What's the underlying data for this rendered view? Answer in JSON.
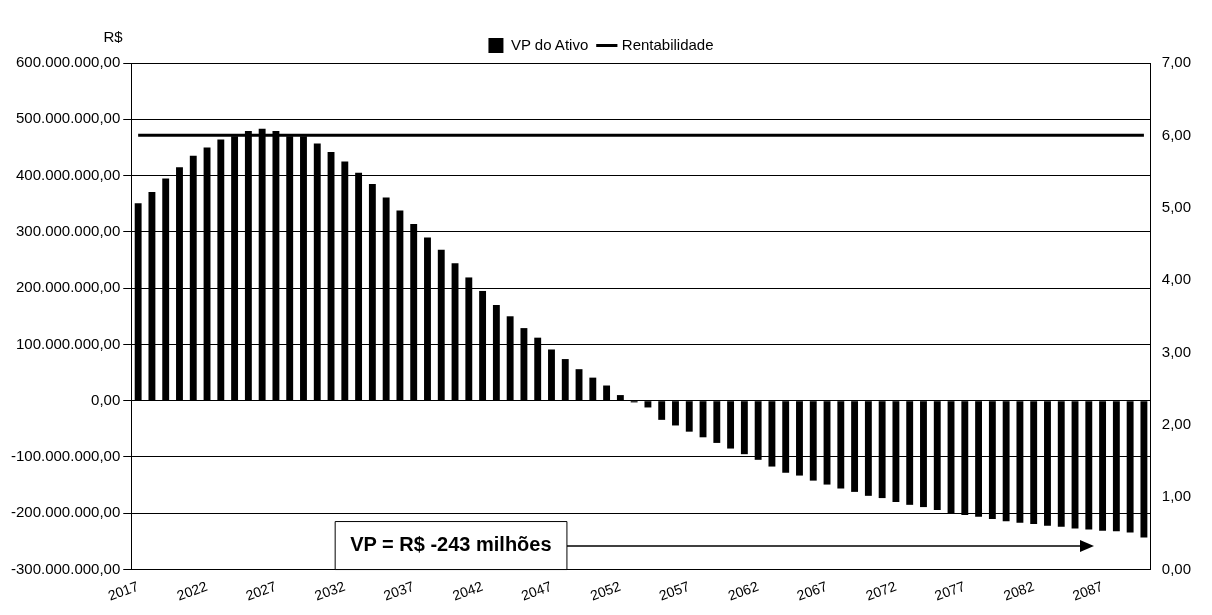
{
  "chart_data": {
    "type": "bar",
    "ylabel": "R$",
    "legend": "top",
    "categories": [
      "2017",
      null,
      null,
      null,
      null,
      "2022",
      null,
      null,
      null,
      null,
      "2027",
      null,
      null,
      null,
      null,
      "2032",
      null,
      null,
      null,
      null,
      "2037",
      null,
      null,
      null,
      null,
      "2042",
      null,
      null,
      null,
      null,
      "2047",
      null,
      null,
      null,
      null,
      "2052",
      null,
      null,
      null,
      null,
      "2057",
      null,
      null,
      null,
      null,
      "2062",
      null,
      null,
      null,
      null,
      "2067",
      null,
      null,
      null,
      null,
      "2072",
      null,
      null,
      null,
      null,
      "2077",
      null,
      null,
      null,
      null,
      "2082",
      null,
      null,
      null,
      null,
      "2087",
      null,
      null,
      null
    ],
    "series": [
      {
        "name": "VP do Ativo",
        "color": "#000000",
        "values": [
          351000000,
          371000000,
          395000000,
          415000000,
          435000000,
          450000000,
          464000000,
          470000000,
          479000000,
          483000000,
          479000000,
          470000000,
          470000000,
          457000000,
          442000000,
          425000000,
          405000000,
          385000000,
          361000000,
          338000000,
          314000000,
          290000000,
          268000000,
          244000000,
          219000000,
          195000000,
          170000000,
          150000000,
          129000000,
          112000000,
          91000000,
          74000000,
          56000000,
          41000000,
          27000000,
          10000000,
          -3000000,
          -12000000,
          -34000000,
          -44000000,
          -55000000,
          -65000000,
          -75000000,
          -85000000,
          -95000000,
          -105000000,
          -117000000,
          -128000000,
          -133000000,
          -142000000,
          -149000000,
          -156000000,
          -162000000,
          -169000000,
          -173000000,
          -180000000,
          -185000000,
          -189000000,
          -194000000,
          -200000000,
          -203000000,
          -206000000,
          -210000000,
          -214000000,
          -217000000,
          -219000000,
          -222000000,
          -224000000,
          -227000000,
          -229000000,
          -231000000,
          -232000000,
          -234000000,
          -243000000
        ]
      },
      {
        "name": "Rentabilidade",
        "type": "line",
        "axis": "y2",
        "color": "#000000",
        "values": [
          6,
          6,
          6,
          6,
          6,
          6,
          6,
          6,
          6,
          6,
          6,
          6,
          6,
          6,
          6,
          6,
          6,
          6,
          6,
          6,
          6,
          6,
          6,
          6,
          6,
          6,
          6,
          6,
          6,
          6,
          6,
          6,
          6,
          6,
          6,
          6,
          6,
          6,
          6,
          6,
          6,
          6,
          6,
          6,
          6,
          6,
          6,
          6,
          6,
          6,
          6,
          6,
          6,
          6,
          6,
          6,
          6,
          6,
          6,
          6,
          6,
          6,
          6,
          6,
          6,
          6,
          6,
          6,
          6,
          6,
          6,
          6,
          6,
          6
        ]
      }
    ],
    "ylim": [
      -300000000,
      600000000
    ],
    "yticks": [
      {
        "value": -300000000,
        "label": "-300.000.000,00"
      },
      {
        "value": -200000000,
        "label": "-200.000.000,00"
      },
      {
        "value": -100000000,
        "label": "-100.000.000,00"
      },
      {
        "value": 0,
        "label": "0,00"
      },
      {
        "value": 100000000,
        "label": "100.000.000,00"
      },
      {
        "value": 200000000,
        "label": "200.000.000,00"
      },
      {
        "value": 300000000,
        "label": "300.000.000,00"
      },
      {
        "value": 400000000,
        "label": "400.000.000,00"
      },
      {
        "value": 500000000,
        "label": "500.000.000,00"
      },
      {
        "value": 600000000,
        "label": "600.000.000,00"
      }
    ],
    "y2lim": [
      0,
      7
    ],
    "y2ticks": [
      {
        "value": 0,
        "label": "0,00"
      },
      {
        "value": 1,
        "label": "1,00"
      },
      {
        "value": 2,
        "label": "2,00"
      },
      {
        "value": 3,
        "label": "3,00"
      },
      {
        "value": 4,
        "label": "4,00"
      },
      {
        "value": 5,
        "label": "5,00"
      },
      {
        "value": 6,
        "label": "6,00"
      },
      {
        "value": 7,
        "label": "7,00"
      }
    ],
    "grid": "y",
    "annotations": [
      {
        "text": "VP = R$ -243 milhões"
      }
    ]
  }
}
